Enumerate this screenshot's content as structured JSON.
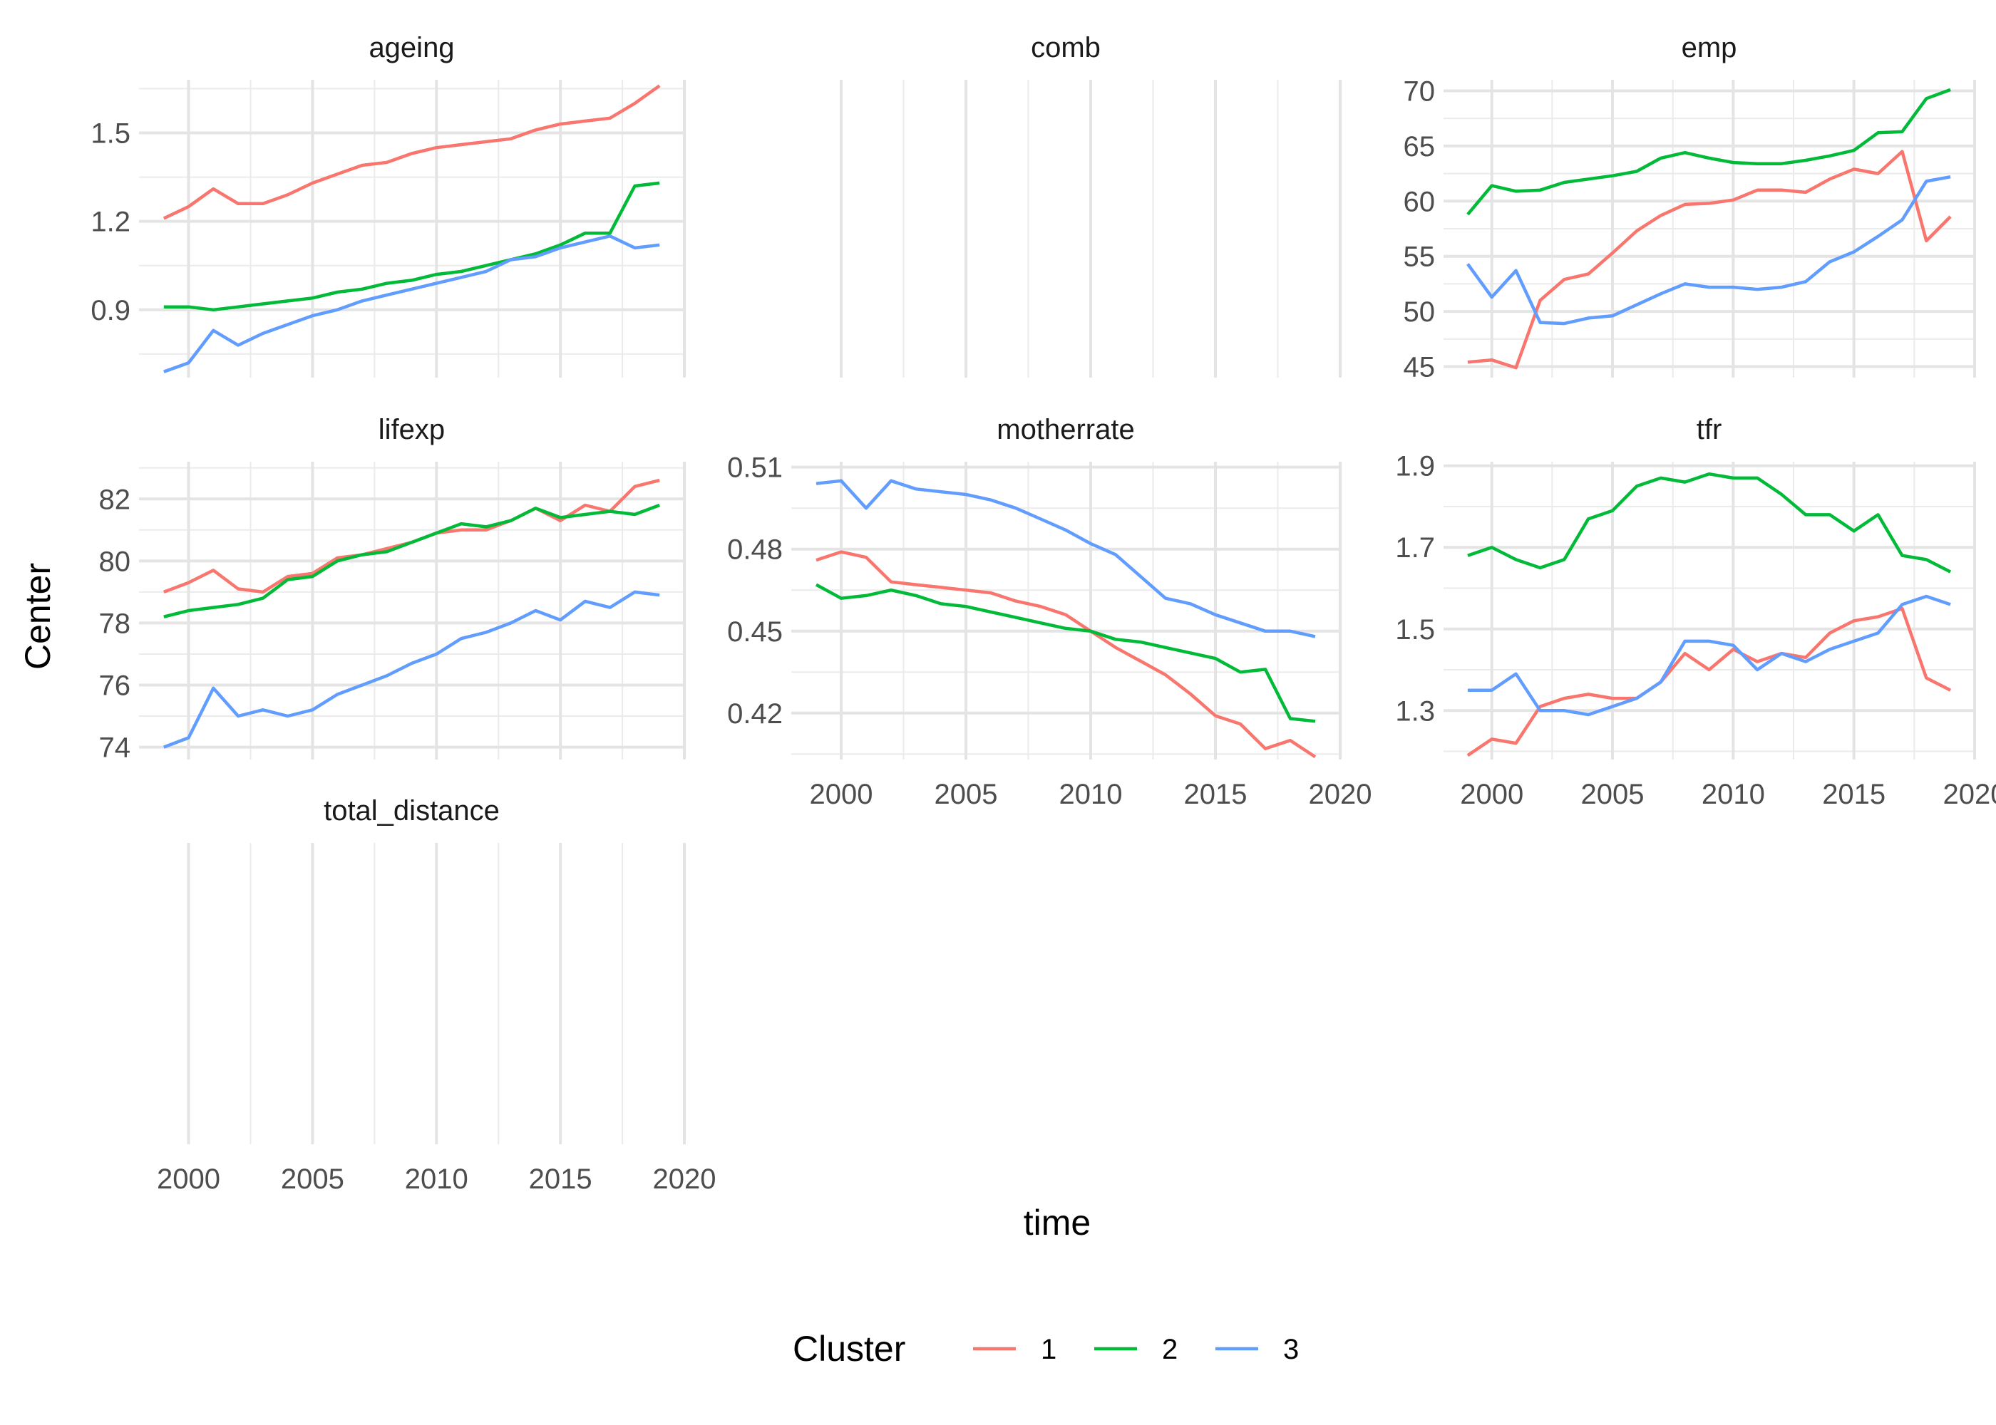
{
  "chart_data": {
    "type": "line",
    "xlabel": "time",
    "ylabel": "Center",
    "legend": {
      "title": "Cluster",
      "position": "bottom",
      "entries": [
        {
          "name": "1",
          "color": "#F8766D"
        },
        {
          "name": "2",
          "color": "#00BA38"
        },
        {
          "name": "3",
          "color": "#619CFF"
        }
      ]
    },
    "x": [
      1999,
      2000,
      2001,
      2002,
      2003,
      2004,
      2005,
      2006,
      2007,
      2008,
      2009,
      2010,
      2011,
      2012,
      2013,
      2014,
      2015,
      2016,
      2017,
      2018,
      2019
    ],
    "xlim": [
      1998,
      2020
    ],
    "x_ticks": [
      "2000",
      "2005",
      "2010",
      "2015",
      "2020"
    ],
    "grid": true,
    "panels": [
      {
        "label": "ageing",
        "ylim": [
          0.67,
          1.68
        ],
        "y_ticks": [
          0.9,
          1.2,
          1.5
        ],
        "y_tick_labels": [
          "0.9",
          "1.2",
          "1.5"
        ],
        "series": [
          {
            "name": "1",
            "values": [
              1.21,
              1.25,
              1.31,
              1.26,
              1.26,
              1.29,
              1.33,
              1.36,
              1.39,
              1.4,
              1.43,
              1.45,
              1.46,
              1.47,
              1.48,
              1.51,
              1.53,
              1.54,
              1.55,
              1.6,
              1.66
            ]
          },
          {
            "name": "2",
            "values": [
              0.91,
              0.91,
              0.9,
              0.91,
              0.92,
              0.93,
              0.94,
              0.96,
              0.97,
              0.99,
              1.0,
              1.02,
              1.03,
              1.05,
              1.07,
              1.09,
              1.12,
              1.16,
              1.16,
              1.32,
              1.33
            ]
          },
          {
            "name": "3",
            "values": [
              0.69,
              0.72,
              0.83,
              0.78,
              0.82,
              0.85,
              0.88,
              0.9,
              0.93,
              0.95,
              0.97,
              0.99,
              1.01,
              1.03,
              1.07,
              1.08,
              1.11,
              1.13,
              1.15,
              1.11,
              1.12
            ]
          }
        ]
      },
      {
        "label": "comb",
        "ylim": [
          0,
          1
        ],
        "y_ticks": [],
        "y_tick_labels": [],
        "series": []
      },
      {
        "label": "emp",
        "ylim": [
          44,
          71
        ],
        "y_ticks": [
          45,
          50,
          55,
          60,
          65,
          70
        ],
        "y_tick_labels": [
          "45",
          "50",
          "55",
          "60",
          "65",
          "70"
        ],
        "series": [
          {
            "name": "1",
            "values": [
              45.4,
              45.6,
              44.9,
              51.0,
              52.9,
              53.4,
              55.3,
              57.3,
              58.7,
              59.7,
              59.8,
              60.1,
              61.0,
              61.0,
              60.8,
              62.0,
              62.9,
              62.5,
              64.5,
              56.4,
              58.6
            ]
          },
          {
            "name": "2",
            "values": [
              58.8,
              61.4,
              60.9,
              61.0,
              61.7,
              62.0,
              62.3,
              62.7,
              63.9,
              64.4,
              63.9,
              63.5,
              63.4,
              63.4,
              63.7,
              64.1,
              64.6,
              66.2,
              66.3,
              69.3,
              70.1
            ]
          },
          {
            "name": "3",
            "values": [
              54.3,
              51.3,
              53.7,
              49.0,
              48.9,
              49.4,
              49.6,
              50.6,
              51.6,
              52.5,
              52.2,
              52.2,
              52.0,
              52.2,
              52.7,
              54.5,
              55.4,
              56.8,
              58.3,
              61.8,
              62.2
            ]
          }
        ]
      },
      {
        "label": "lifexp",
        "ylim": [
          73.6,
          83.2
        ],
        "y_ticks": [
          74,
          76,
          78,
          80,
          82
        ],
        "y_tick_labels": [
          "74",
          "76",
          "78",
          "80",
          "82"
        ],
        "series": [
          {
            "name": "1",
            "values": [
              79.0,
              79.3,
              79.7,
              79.1,
              79.0,
              79.5,
              79.6,
              80.1,
              80.2,
              80.4,
              80.6,
              80.9,
              81.0,
              81.0,
              81.3,
              81.7,
              81.3,
              81.8,
              81.6,
              82.4,
              82.6
            ]
          },
          {
            "name": "2",
            "values": [
              78.2,
              78.4,
              78.5,
              78.6,
              78.8,
              79.4,
              79.5,
              80.0,
              80.2,
              80.3,
              80.6,
              80.9,
              81.2,
              81.1,
              81.3,
              81.7,
              81.4,
              81.5,
              81.6,
              81.5,
              81.8
            ]
          },
          {
            "name": "3",
            "values": [
              74.0,
              74.3,
              75.9,
              75.0,
              75.2,
              75.0,
              75.2,
              75.7,
              76.0,
              76.3,
              76.7,
              77.0,
              77.5,
              77.7,
              78.0,
              78.4,
              78.1,
              78.7,
              78.5,
              79.0,
              78.9
            ]
          }
        ]
      },
      {
        "label": "motherrate",
        "ylim": [
          0.403,
          0.512
        ],
        "y_ticks": [
          0.42,
          0.45,
          0.48,
          0.51
        ],
        "y_tick_labels": [
          "0.42",
          "0.45",
          "0.48",
          "0.51"
        ],
        "series": [
          {
            "name": "1",
            "values": [
              0.476,
              0.479,
              0.477,
              0.468,
              0.467,
              0.466,
              0.465,
              0.464,
              0.461,
              0.459,
              0.456,
              0.45,
              0.444,
              0.439,
              0.434,
              0.427,
              0.419,
              0.416,
              0.407,
              0.41,
              0.404
            ]
          },
          {
            "name": "2",
            "values": [
              0.467,
              0.462,
              0.463,
              0.465,
              0.463,
              0.46,
              0.459,
              0.457,
              0.455,
              0.453,
              0.451,
              0.45,
              0.447,
              0.446,
              0.444,
              0.442,
              0.44,
              0.435,
              0.436,
              0.418,
              0.417
            ]
          },
          {
            "name": "3",
            "values": [
              0.504,
              0.505,
              0.495,
              0.505,
              0.502,
              0.501,
              0.5,
              0.498,
              0.495,
              0.491,
              0.487,
              0.482,
              0.478,
              0.47,
              0.462,
              0.46,
              0.456,
              0.453,
              0.45,
              0.45,
              0.448
            ]
          }
        ]
      },
      {
        "label": "tfr",
        "ylim": [
          1.18,
          1.91
        ],
        "y_ticks": [
          1.3,
          1.5,
          1.7,
          1.9
        ],
        "y_tick_labels": [
          "1.3",
          "1.5",
          "1.7",
          "1.9"
        ],
        "series": [
          {
            "name": "1",
            "values": [
              1.19,
              1.23,
              1.22,
              1.31,
              1.33,
              1.34,
              1.33,
              1.33,
              1.37,
              1.44,
              1.4,
              1.45,
              1.42,
              1.44,
              1.43,
              1.49,
              1.52,
              1.53,
              1.55,
              1.38,
              1.35
            ]
          },
          {
            "name": "2",
            "values": [
              1.68,
              1.7,
              1.67,
              1.65,
              1.67,
              1.77,
              1.79,
              1.85,
              1.87,
              1.86,
              1.88,
              1.87,
              1.87,
              1.83,
              1.78,
              1.78,
              1.74,
              1.78,
              1.68,
              1.67,
              1.64
            ]
          },
          {
            "name": "3",
            "values": [
              1.35,
              1.35,
              1.39,
              1.3,
              1.3,
              1.29,
              1.31,
              1.33,
              1.37,
              1.47,
              1.47,
              1.46,
              1.4,
              1.44,
              1.42,
              1.45,
              1.47,
              1.49,
              1.56,
              1.58,
              1.56
            ]
          }
        ]
      },
      {
        "label": "total_distance",
        "ylim": [
          0,
          1
        ],
        "y_ticks": [],
        "y_tick_labels": [],
        "series": []
      }
    ]
  }
}
